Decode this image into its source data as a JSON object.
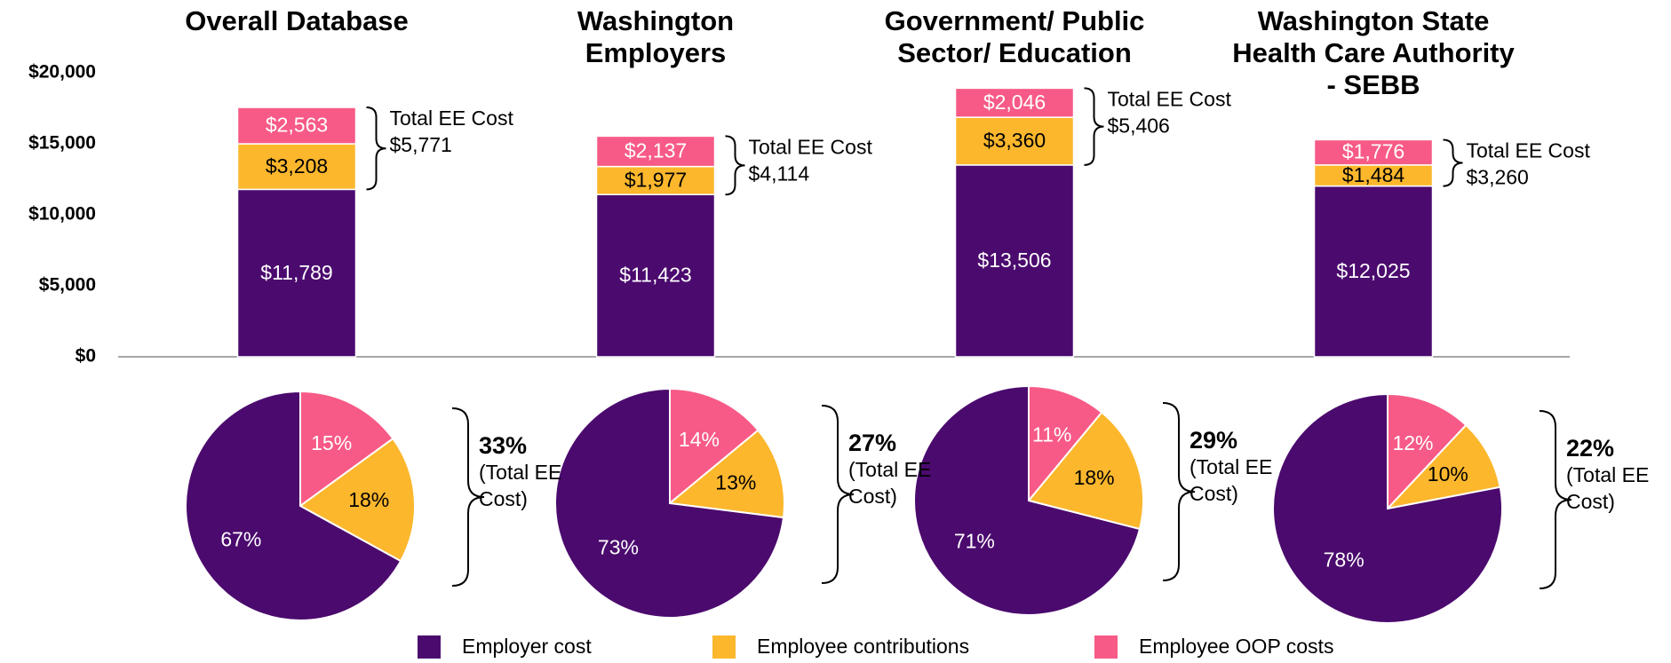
{
  "chart_data": [
    {
      "type": "bar",
      "stacked": true,
      "categories": [
        "Overall Database",
        "Washington Employers",
        "Government/ Public Sector/ Education",
        "Washington State Health Care Authority - SEBB"
      ],
      "series": [
        {
          "name": "Employer cost",
          "color": "#4b0a6e",
          "values": [
            11789,
            11423,
            13506,
            12025
          ],
          "value_labels": [
            "$11,789",
            "$11,423",
            "$13,506",
            "$12,025"
          ],
          "label_color": "#ffffff"
        },
        {
          "name": "Employee contributions",
          "color": "#fcb72d",
          "values": [
            3208,
            1977,
            3360,
            1484
          ],
          "value_labels": [
            "$3,208",
            "$1,977",
            "$3,360",
            "$1,484"
          ],
          "label_color": "#000000"
        },
        {
          "name": "Employee OOP costs",
          "color": "#f75a86",
          "values": [
            2563,
            2137,
            2046,
            1776
          ],
          "value_labels": [
            "$2,563",
            "$2,137",
            "$2,046",
            "$1,776"
          ],
          "label_color": "#ffffff"
        }
      ],
      "totals": {
        "label": "Total EE Cost",
        "values": [
          5771,
          4114,
          5406,
          3260
        ],
        "value_labels": [
          "$5,771",
          "$4,114",
          "$5,406",
          "$3,260"
        ]
      },
      "ylim": [
        0,
        20000
      ],
      "yticks": [
        {
          "value": 0,
          "label": "$0"
        },
        {
          "value": 5000,
          "label": "$5,000"
        },
        {
          "value": 10000,
          "label": "$10,000"
        },
        {
          "value": 15000,
          "label": "$15,000"
        },
        {
          "value": 20000,
          "label": "$20,000"
        }
      ],
      "grid": false,
      "legend": "bottom"
    },
    {
      "type": "pie",
      "values": [
        15,
        18,
        67
      ],
      "value_labels": [
        "15%",
        "18%",
        "67%"
      ],
      "colors": [
        "#f75a86",
        "#fcb72d",
        "#4b0a6e"
      ],
      "label_colors": [
        "#ffffff",
        "#000000",
        "#ffffff"
      ],
      "total": 33,
      "total_label": "33%",
      "note": "(Total EE Cost)"
    },
    {
      "type": "pie",
      "values": [
        14,
        13,
        73
      ],
      "value_labels": [
        "14%",
        "13%",
        "73%"
      ],
      "colors": [
        "#f75a86",
        "#fcb72d",
        "#4b0a6e"
      ],
      "label_colors": [
        "#ffffff",
        "#000000",
        "#ffffff"
      ],
      "total": 27,
      "total_label": "27%",
      "note": "(Total EE Cost)"
    },
    {
      "type": "pie",
      "values": [
        11,
        18,
        71
      ],
      "value_labels": [
        "11%",
        "18%",
        "71%"
      ],
      "colors": [
        "#f75a86",
        "#fcb72d",
        "#4b0a6e"
      ],
      "label_colors": [
        "#ffffff",
        "#000000",
        "#ffffff"
      ],
      "total": 29,
      "total_label": "29%",
      "note": "(Total EE Cost)"
    },
    {
      "type": "pie",
      "values": [
        12,
        10,
        78
      ],
      "value_labels": [
        "12%",
        "10%",
        "78%"
      ],
      "colors": [
        "#f75a86",
        "#fcb72d",
        "#4b0a6e"
      ],
      "label_colors": [
        "#ffffff",
        "#000000",
        "#ffffff"
      ],
      "total": 22,
      "total_label": "22%",
      "note": "(Total EE Cost)"
    }
  ]
}
